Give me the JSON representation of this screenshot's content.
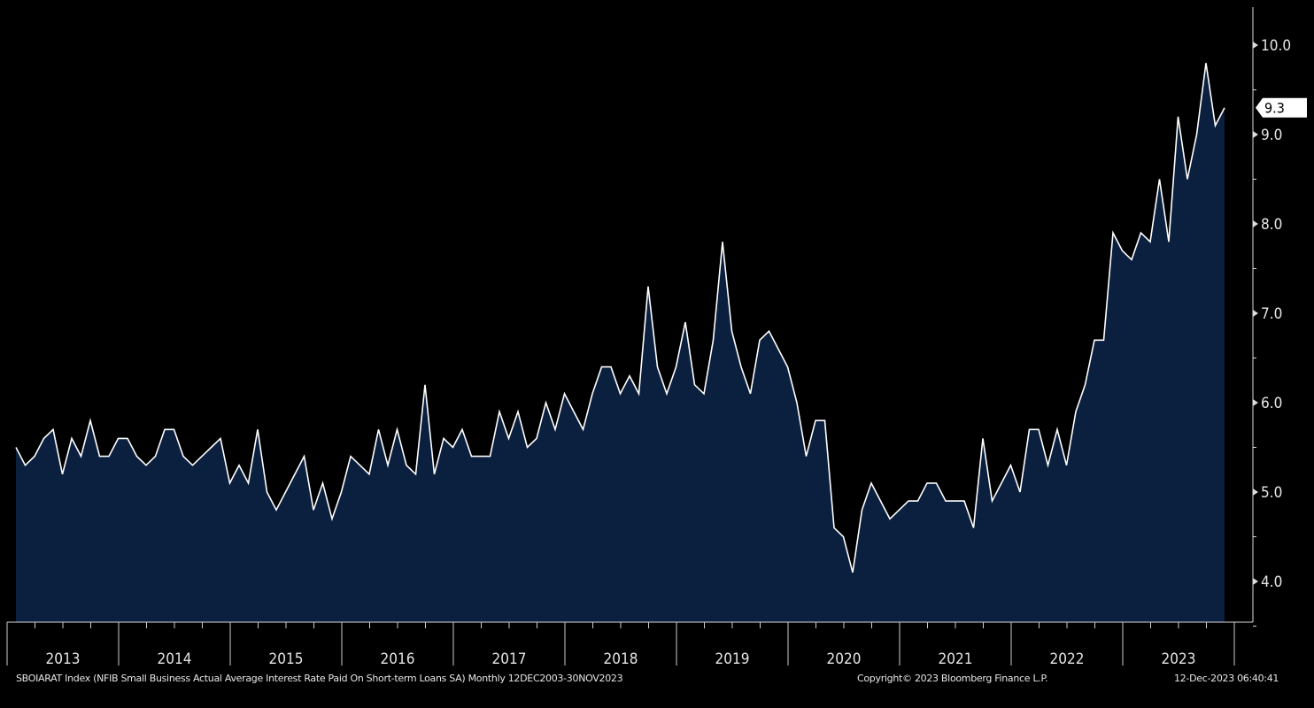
{
  "chart_data": {
    "type": "area",
    "title": "SBOIARAT Index",
    "ylabel": "",
    "xlabel": "",
    "ylim": [
      3.54,
      10.42
    ],
    "yticks": [
      "4.0",
      "5.0",
      "6.0",
      "7.0",
      "8.0",
      "9.0",
      "10.0"
    ],
    "ytick_values": [
      4,
      5,
      6,
      7,
      8,
      9,
      10
    ],
    "years": [
      "2013",
      "2014",
      "2015",
      "2016",
      "2017",
      "2018",
      "2019",
      "2020",
      "2021",
      "2022",
      "2023"
    ],
    "start": "Jan 2013",
    "frequency": "monthly",
    "last_value_label": "9.3",
    "colors": {
      "line": "#ffffff",
      "fill": "#0b1f3f",
      "background": "#000000"
    },
    "values": [
      5.5,
      5.3,
      5.4,
      5.6,
      5.7,
      5.2,
      5.6,
      5.4,
      5.8,
      5.4,
      5.4,
      5.6,
      5.6,
      5.4,
      5.3,
      5.4,
      5.7,
      5.7,
      5.4,
      5.3,
      5.4,
      5.5,
      5.6,
      5.1,
      5.3,
      5.1,
      5.7,
      5.0,
      4.8,
      5.0,
      5.2,
      5.4,
      4.8,
      5.1,
      4.7,
      5.0,
      5.4,
      5.3,
      5.2,
      5.7,
      5.3,
      5.7,
      5.3,
      5.2,
      6.2,
      5.2,
      5.6,
      5.5,
      5.7,
      5.4,
      5.4,
      5.4,
      5.9,
      5.6,
      5.9,
      5.5,
      5.6,
      6.0,
      5.7,
      6.1,
      5.9,
      5.7,
      6.1,
      6.4,
      6.4,
      6.1,
      6.3,
      6.1,
      7.3,
      6.4,
      6.1,
      6.4,
      6.9,
      6.2,
      6.1,
      6.7,
      7.8,
      6.8,
      6.4,
      6.1,
      6.7,
      6.8,
      6.6,
      6.4,
      6.0,
      5.4,
      5.8,
      5.8,
      4.6,
      4.5,
      4.1,
      4.8,
      5.1,
      4.9,
      4.7,
      4.8,
      4.9,
      4.9,
      5.1,
      5.1,
      4.9,
      4.9,
      4.9,
      4.6,
      5.6,
      4.9,
      5.1,
      5.3,
      5.0,
      5.7,
      5.7,
      5.3,
      5.7,
      5.3,
      5.9,
      6.2,
      6.7,
      6.7,
      7.9,
      7.7,
      7.6,
      7.9,
      7.8,
      8.5,
      7.8,
      9.2,
      8.5,
      9.0,
      9.8,
      9.1,
      9.3
    ]
  },
  "footer": {
    "description": "SBOIARAT Index (NFIB Small Business Actual Average Interest Rate Paid On Short-term Loans SA)  Monthly 12DEC2003-30NOV2023",
    "copyright": "Copyright© 2023 Bloomberg Finance L.P.",
    "timestamp": "12-Dec-2023 06:40:41"
  }
}
